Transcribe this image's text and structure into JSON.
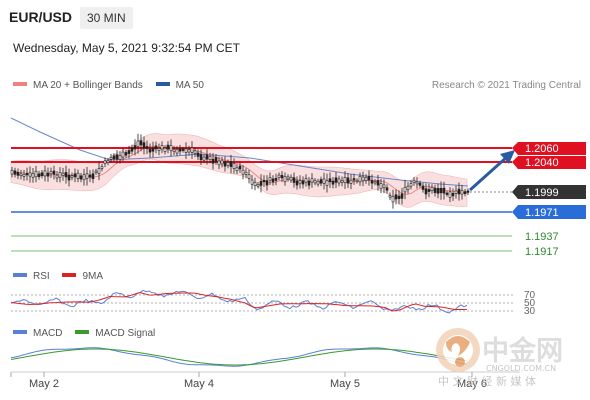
{
  "header": {
    "pair": "EUR/USD",
    "timeframe": "30 MIN",
    "datetime": "Wednesday, May 5, 2021 9:32:54 PM CET"
  },
  "main_legend": [
    {
      "label": "MA 20 + Bollinger Bands",
      "color": "#f08080"
    },
    {
      "label": "MA 50",
      "color": "#2c5aa0"
    }
  ],
  "credit": "Research © 2021 Trading Central",
  "levels": [
    {
      "label": "1.2060",
      "type": "resistance",
      "color": "#e01020"
    },
    {
      "label": "1.2040",
      "type": "resistance",
      "color": "#e01020"
    },
    {
      "label": "1.1999",
      "type": "current",
      "color": "#333333"
    },
    {
      "label": "1.1971",
      "type": "pivot",
      "color": "#2a6dd9"
    },
    {
      "label": "1.1937",
      "type": "support",
      "color": "#2e8b2e"
    },
    {
      "label": "1.1917",
      "type": "support",
      "color": "#2e8b2e"
    }
  ],
  "rsi": {
    "legend": [
      {
        "label": "RSI",
        "color": "#5b7fd6"
      },
      {
        "label": "9MA",
        "color": "#d22"
      }
    ],
    "levels": [
      "70",
      "50",
      "30"
    ]
  },
  "macd": {
    "legend": [
      {
        "label": "MACD",
        "color": "#5b7fd6"
      },
      {
        "label": "MACD Signal",
        "color": "#3a9a2a"
      }
    ]
  },
  "x_axis": {
    "labels": [
      "May 2",
      "May 4",
      "May 5",
      "May 6"
    ]
  },
  "watermark": {
    "main": "中金网",
    "sub": "CNGOLD.COM.CN",
    "tagline": "中 文 财 经 新 媒 体"
  },
  "colors": {
    "resistance": "#e01020",
    "pivot": "#2a6dd9",
    "support": "#2e8b2e",
    "current": "#333333",
    "candle": "#222222",
    "band_fill": "#f8d7d7",
    "ma20": "#f08080",
    "ma50": "#6a88c8",
    "arrow": "#2c5aa0"
  }
}
